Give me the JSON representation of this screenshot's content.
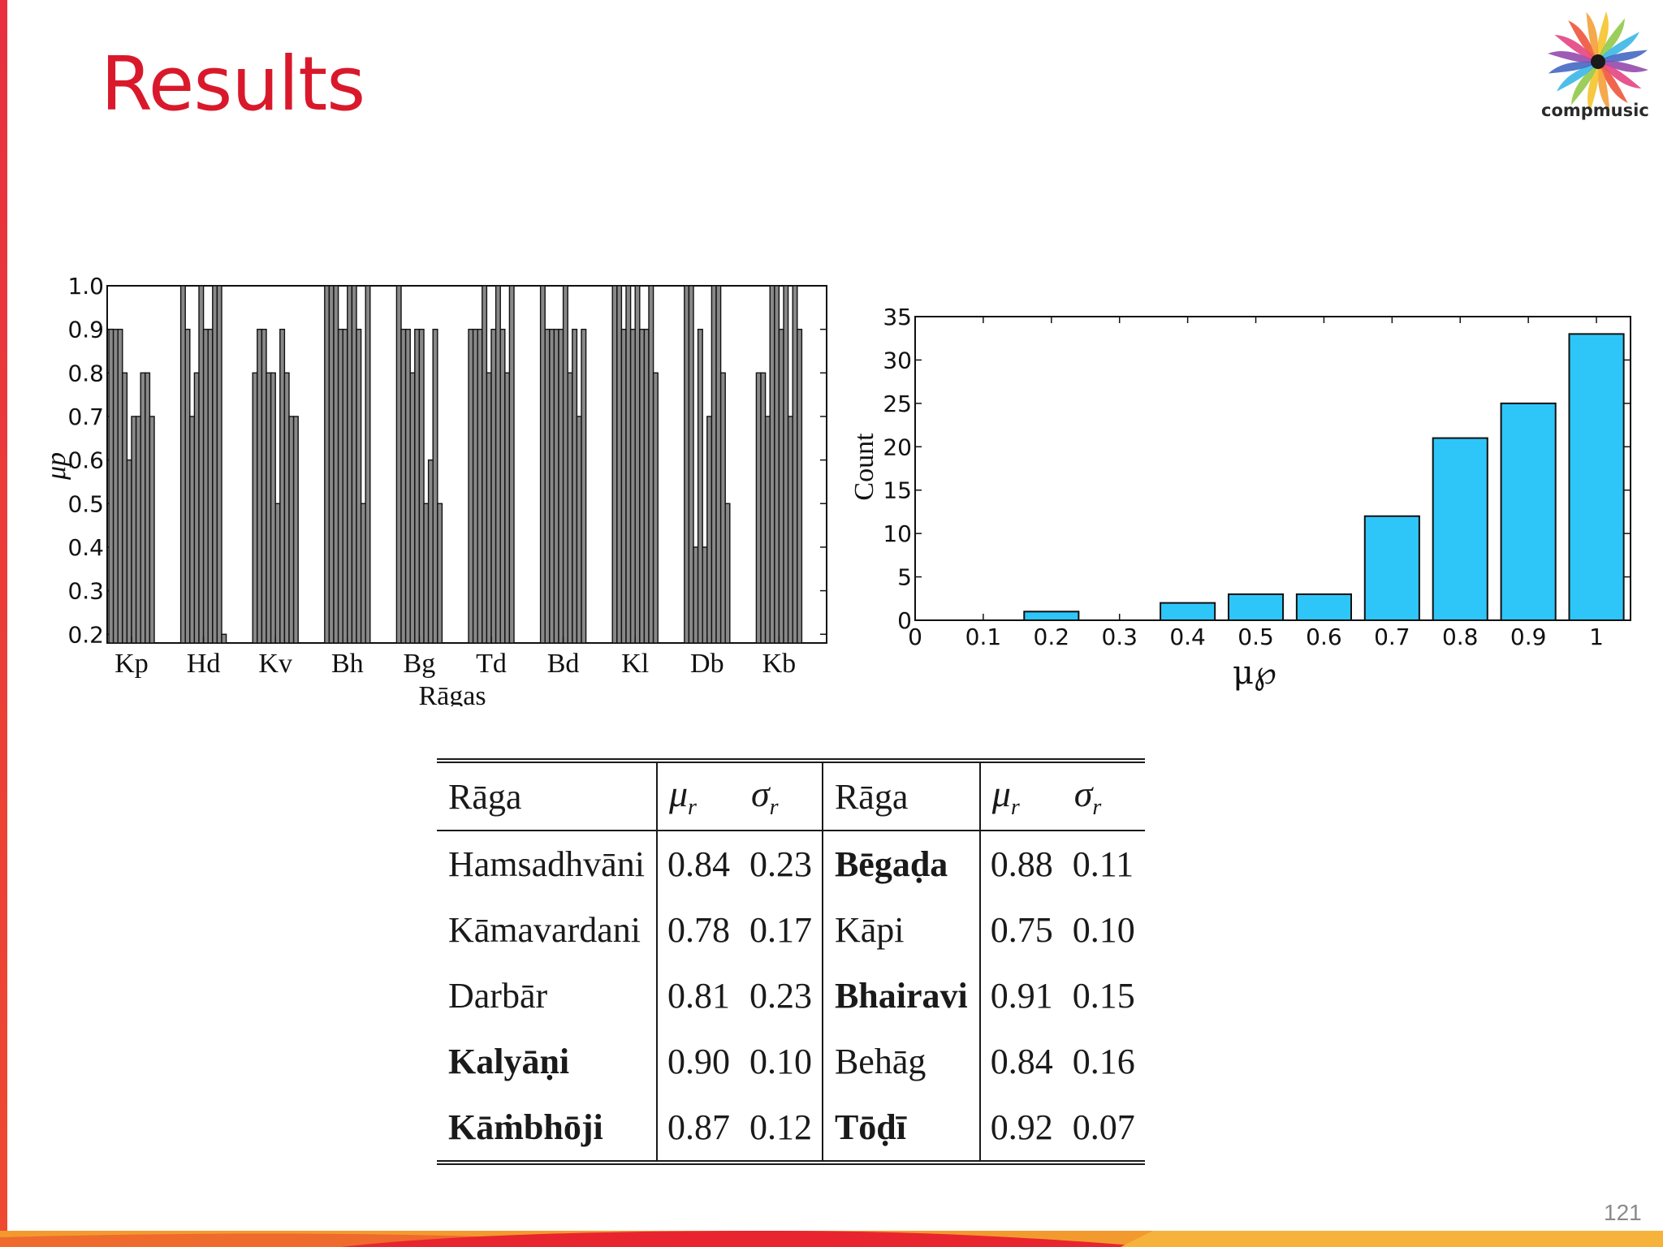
{
  "slide": {
    "title": "Results",
    "logo_text": "compmusic",
    "page_number": "121"
  },
  "colors": {
    "title": "#d9192b",
    "accent_bar": "#e8303f",
    "left_bars": "#888888",
    "hist_bars": "#2ec6f8"
  },
  "chart_data": [
    {
      "type": "bar",
      "title": "",
      "xlabel": "Rāgas",
      "ylabel": "μp",
      "ylim": [
        0.18,
        1.0
      ],
      "yticks": [
        "0.2",
        "0.3",
        "0.4",
        "0.5",
        "0.6",
        "0.7",
        "0.8",
        "0.9",
        "1.0"
      ],
      "grid": false,
      "categories": [
        "Kp",
        "Hd",
        "Kv",
        "Bh",
        "Bg",
        "Td",
        "Bd",
        "Kl",
        "Db",
        "Kb"
      ],
      "values_per_category": [
        [
          0.9,
          0.9,
          0.9,
          0.8,
          0.6,
          0.7,
          0.7,
          0.8,
          0.8,
          0.7
        ],
        [
          1.0,
          0.9,
          0.7,
          0.8,
          1.0,
          0.9,
          0.9,
          1.0,
          1.0,
          0.2
        ],
        [
          0.8,
          0.9,
          0.9,
          0.8,
          0.8,
          0.5,
          0.9,
          0.8,
          0.7,
          0.7
        ],
        [
          1.0,
          1.0,
          1.0,
          0.9,
          0.9,
          1.0,
          1.0,
          0.9,
          0.5,
          1.0
        ],
        [
          1.0,
          0.9,
          0.9,
          0.8,
          0.9,
          0.9,
          0.5,
          0.6,
          0.9,
          0.5
        ],
        [
          0.9,
          0.9,
          0.9,
          1.0,
          0.8,
          0.9,
          1.0,
          0.9,
          0.8,
          1.0
        ],
        [
          1.0,
          0.9,
          0.9,
          0.9,
          0.9,
          1.0,
          0.8,
          0.9,
          0.7,
          0.9
        ],
        [
          1.0,
          1.0,
          0.9,
          1.0,
          0.9,
          1.0,
          0.9,
          0.9,
          1.0,
          0.8
        ],
        [
          1.0,
          1.0,
          0.4,
          0.9,
          0.4,
          0.7,
          1.0,
          1.0,
          0.8,
          0.5
        ],
        [
          0.8,
          0.8,
          0.7,
          1.0,
          1.0,
          0.9,
          1.0,
          0.7,
          1.0,
          0.9
        ]
      ]
    },
    {
      "type": "bar",
      "title": "",
      "xlabel": "μ℘",
      "ylabel": "Count",
      "ylim": [
        0,
        35
      ],
      "xlim": [
        0,
        1.05
      ],
      "xticks": [
        "0",
        "0.1",
        "0.2",
        "0.3",
        "0.4",
        "0.5",
        "0.6",
        "0.7",
        "0.8",
        "0.9",
        "1"
      ],
      "yticks": [
        "0",
        "5",
        "10",
        "15",
        "20",
        "25",
        "30",
        "35"
      ],
      "grid": false,
      "x": [
        0,
        0.1,
        0.2,
        0.3,
        0.4,
        0.5,
        0.6,
        0.7,
        0.8,
        0.9,
        1.0
      ],
      "values": [
        0,
        0,
        1,
        0,
        2,
        3,
        3,
        12,
        21,
        25,
        33
      ]
    },
    {
      "type": "table",
      "headers": {
        "raga": "Rāga",
        "mu": "μ",
        "sigma": "σ",
        "sub": "r"
      },
      "rows": [
        {
          "left": {
            "raga": "Hamsadhvāni",
            "bold": false,
            "mu": "0.84",
            "sigma": "0.23"
          },
          "right": {
            "raga": "Bēgaḍa",
            "bold": true,
            "mu": "0.88",
            "sigma": "0.11"
          }
        },
        {
          "left": {
            "raga": "Kāmavardani",
            "bold": false,
            "mu": "0.78",
            "sigma": "0.17"
          },
          "right": {
            "raga": "Kāpi",
            "bold": false,
            "mu": "0.75",
            "sigma": "0.10"
          }
        },
        {
          "left": {
            "raga": "Darbār",
            "bold": false,
            "mu": "0.81",
            "sigma": "0.23"
          },
          "right": {
            "raga": "Bhairavi",
            "bold": true,
            "mu": "0.91",
            "sigma": "0.15"
          }
        },
        {
          "left": {
            "raga": "Kalyāṇi",
            "bold": true,
            "mu": "0.90",
            "sigma": "0.10"
          },
          "right": {
            "raga": "Behāg",
            "bold": false,
            "mu": "0.84",
            "sigma": "0.16"
          }
        },
        {
          "left": {
            "raga": "Kāṁbhōji",
            "bold": true,
            "mu": "0.87",
            "sigma": "0.12"
          },
          "right": {
            "raga": "Tōḍī",
            "bold": true,
            "mu": "0.92",
            "sigma": "0.07"
          }
        }
      ]
    }
  ]
}
